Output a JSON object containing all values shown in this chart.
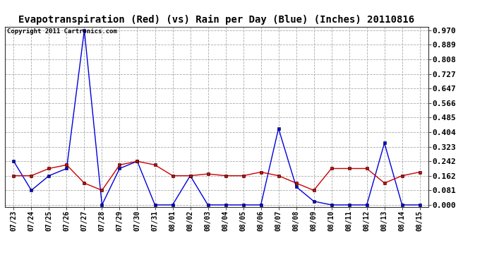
{
  "title": "Evapotranspiration (Red) (vs) Rain per Day (Blue) (Inches) 20110816",
  "copyright": "Copyright 2011 Cartronics.com",
  "labels": [
    "07/23",
    "07/24",
    "07/25",
    "07/26",
    "07/27",
    "07/28",
    "07/29",
    "07/30",
    "07/31",
    "08/01",
    "08/02",
    "08/03",
    "08/04",
    "08/05",
    "08/06",
    "08/07",
    "08/08",
    "08/09",
    "08/10",
    "08/11",
    "08/12",
    "08/13",
    "08/14",
    "08/15"
  ],
  "blue_rain": [
    0.242,
    0.081,
    0.162,
    0.202,
    0.97,
    0.0,
    0.202,
    0.242,
    0.0,
    0.0,
    0.162,
    0.0,
    0.0,
    0.0,
    0.0,
    0.424,
    0.101,
    0.02,
    0.0,
    0.0,
    0.0,
    0.343,
    0.0,
    0.0
  ],
  "red_et": [
    0.162,
    0.162,
    0.202,
    0.222,
    0.121,
    0.081,
    0.222,
    0.242,
    0.222,
    0.162,
    0.162,
    0.172,
    0.162,
    0.162,
    0.182,
    0.162,
    0.121,
    0.081,
    0.202,
    0.202,
    0.202,
    0.121,
    0.162,
    0.182
  ],
  "y_ticks": [
    0.0,
    0.081,
    0.162,
    0.242,
    0.323,
    0.404,
    0.485,
    0.566,
    0.647,
    0.727,
    0.808,
    0.889,
    0.97
  ],
  "ylim": [
    -0.01,
    0.99
  ],
  "bg_color": "#ffffff",
  "plot_bg": "#ffffff",
  "blue_color": "#0000dd",
  "red_color": "#cc0000",
  "grid_color": "#aaaaaa",
  "title_fontsize": 10,
  "copyright_fontsize": 6.5,
  "tick_fontsize": 8,
  "xtick_fontsize": 7
}
